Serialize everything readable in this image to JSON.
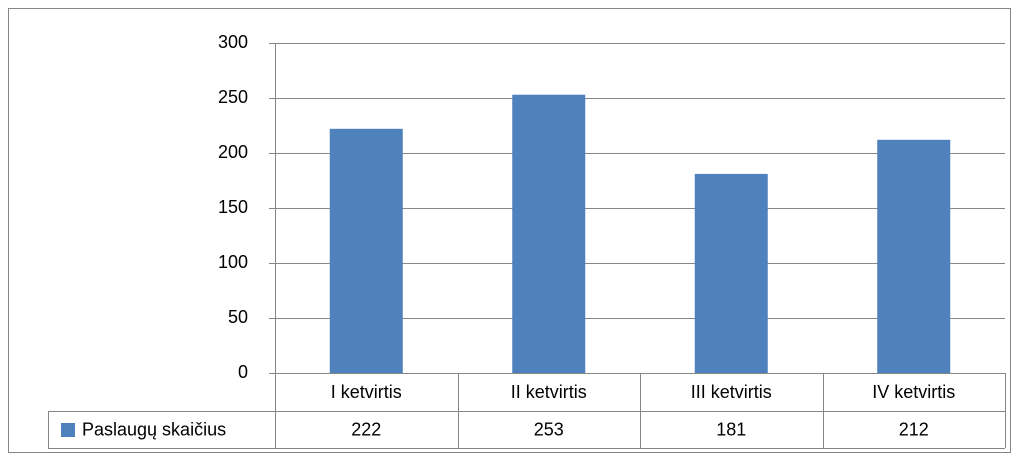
{
  "chart_data": {
    "type": "bar",
    "categories": [
      "I ketvirtis",
      "II ketvirtis",
      "III ketvirtis",
      "IV ketvirtis"
    ],
    "series": [
      {
        "name": "Paslaugų skaičius",
        "color": "#4f81bd",
        "values": [
          222,
          253,
          181,
          212
        ]
      }
    ],
    "ylim": [
      0,
      300
    ],
    "yticks": [
      0,
      50,
      100,
      150,
      200,
      250,
      300
    ],
    "grid": true,
    "data_table": true
  }
}
